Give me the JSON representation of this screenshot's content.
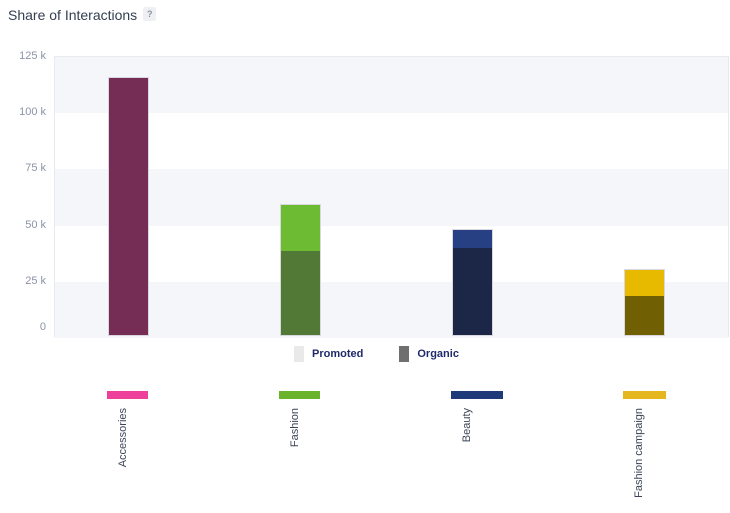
{
  "header": {
    "title": "Share of Interactions",
    "help_glyph": "?"
  },
  "chart_data": {
    "type": "bar",
    "stacked": true,
    "title": "Share of Interactions",
    "categories": [
      "Accessories",
      "Fashion",
      "Beauty",
      "Fashion campaign"
    ],
    "series": [
      {
        "name": "Promoted",
        "values": [
          0,
          20500,
          8000,
          12000
        ]
      },
      {
        "name": "Organic",
        "values": [
          115000,
          38000,
          39500,
          18000
        ]
      }
    ],
    "totals": [
      115000,
      58500,
      47500,
      30000
    ],
    "ylim": [
      0,
      125000
    ],
    "ytick_labels_top_to_bottom": [
      "125 k",
      "100 k",
      "75 k",
      "50 k",
      "25 k",
      "0"
    ],
    "grid": "alternating-horizontal-bands",
    "legend": {
      "position": "bottom-center",
      "items": [
        {
          "label": "Promoted",
          "swatch_color": "#e9e9e9"
        },
        {
          "label": "Organic",
          "swatch_color": "#6f6f6f"
        }
      ]
    },
    "category_colors": [
      {
        "category": "Accessories",
        "promoted": "#ee3f9a",
        "organic": "#762d55",
        "axis_swatch": "#ee3f9a"
      },
      {
        "category": "Fashion",
        "promoted": "#6cbb33",
        "organic": "#527a36",
        "axis_swatch": "#6ab42d"
      },
      {
        "category": "Beauty",
        "promoted": "#264083",
        "organic": "#1c2747",
        "axis_swatch": "#1e3a78"
      },
      {
        "category": "Fashion campaign",
        "promoted": "#e7ba00",
        "organic": "#716003",
        "axis_swatch": "#e3b71d"
      }
    ]
  },
  "colors": {
    "band": "#f5f6fa",
    "band_alt": "#ffffff",
    "plot_border": "#e9eaef",
    "bar_border": "#d8d8de",
    "title_text": "#333f52",
    "tick_text": "#8b93a7",
    "legend_text": "#1f2a6b",
    "category_text": "#3c4557"
  }
}
